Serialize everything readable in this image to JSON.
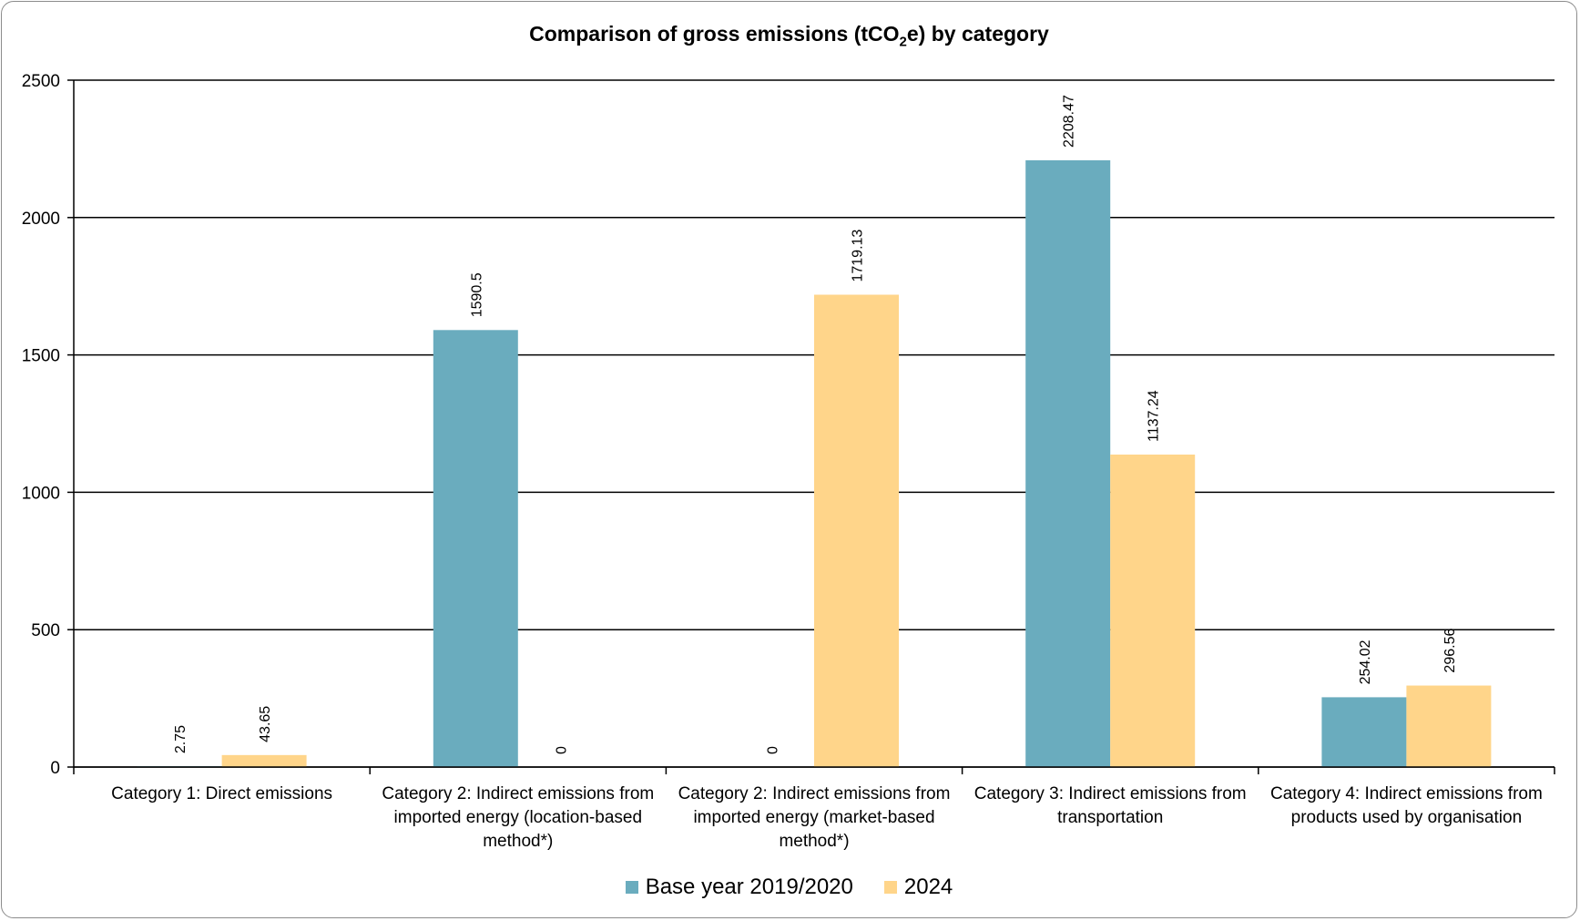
{
  "chart_data": {
    "type": "bar",
    "title_parts": [
      "Comparison of gross emissions (tCO",
      "2",
      "e) by category"
    ],
    "categories": [
      [
        "Category 1: Direct emissions"
      ],
      [
        "Category 2: Indirect emissions from",
        "imported energy (location-based",
        "method*)"
      ],
      [
        "Category 2: Indirect emissions from",
        "imported energy (market-based",
        "method*)"
      ],
      [
        "Category 3: Indirect emissions from",
        "transportation"
      ],
      [
        "Category 4: Indirect emissions from",
        "products used by organisation"
      ]
    ],
    "series": [
      {
        "name": "Base year 2019/2020",
        "color": "#6aacbe",
        "values": [
          2.75,
          1590.5,
          0,
          2208.47,
          254.02
        ],
        "labels": [
          "2.75",
          "1590.5",
          "0",
          "2208.47",
          "254.02"
        ]
      },
      {
        "name": "2024",
        "color": "#ffd58a",
        "values": [
          43.65,
          0,
          1719.13,
          1137.24,
          296.56
        ],
        "labels": [
          "43.65",
          "0",
          "1719.13",
          "1137.24",
          "296.56"
        ]
      }
    ],
    "ylim": [
      0,
      2500
    ],
    "yticks": [
      0,
      500,
      1000,
      1500,
      2000,
      2500
    ],
    "grid": true,
    "legend_position": "bottom"
  }
}
